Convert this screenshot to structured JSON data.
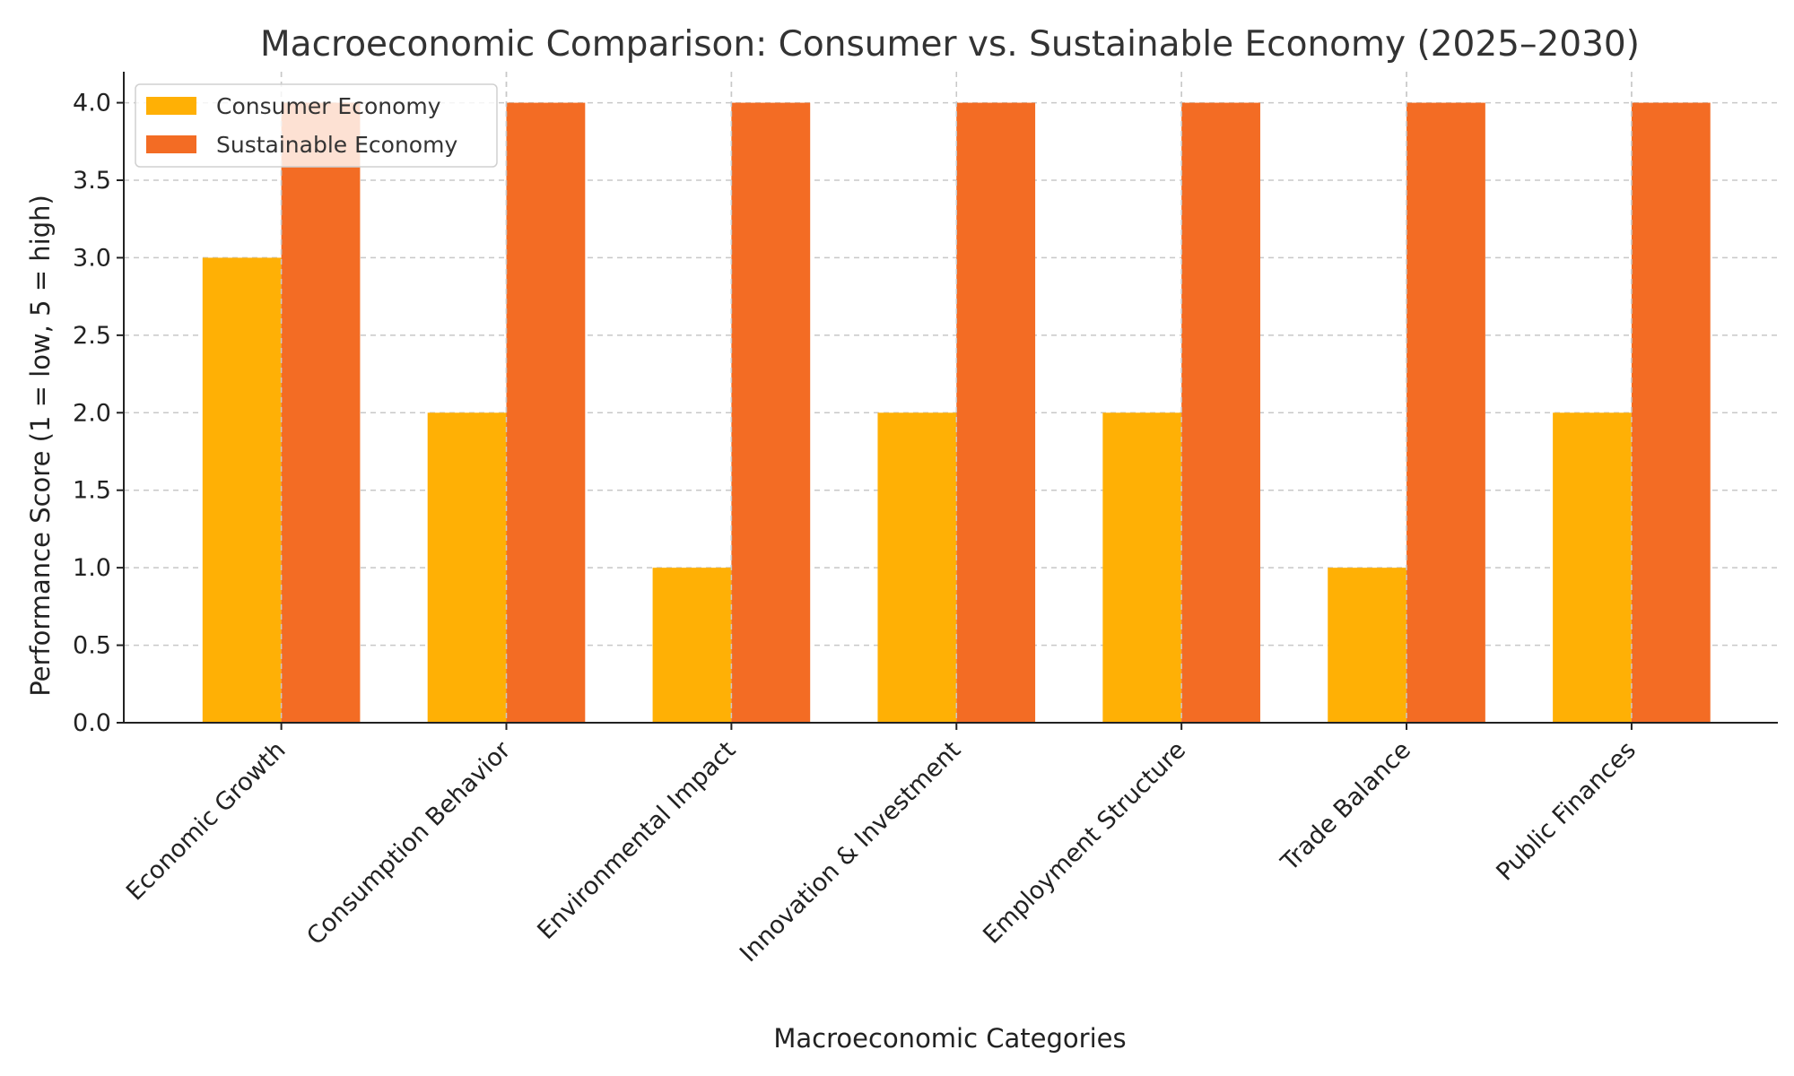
{
  "chart_data": {
    "type": "bar",
    "title": "Macroeconomic Comparison: Consumer vs. Sustainable Economy (2025–2030)",
    "xlabel": "Macroeconomic Categories",
    "ylabel": "Performance Score (1 = low, 5 = high)",
    "ylim": [
      0,
      4.2
    ],
    "yticks": [
      "0.0",
      "0.5",
      "1.0",
      "1.5",
      "2.0",
      "2.5",
      "3.0",
      "3.5",
      "4.0"
    ],
    "grid": true,
    "legend_position": "top-left",
    "categories": [
      "Economic Growth",
      "Consumption Behavior",
      "Environmental Impact",
      "Innovation & Investment",
      "Employment Structure",
      "Trade Balance",
      "Public Finances"
    ],
    "series": [
      {
        "name": "Consumer Economy",
        "color": "#FFB005",
        "values": [
          3,
          2,
          1,
          2,
          2,
          1,
          2
        ]
      },
      {
        "name": "Sustainable Economy",
        "color": "#F36C24",
        "values": [
          4,
          4,
          4,
          4,
          4,
          4,
          4
        ]
      }
    ]
  }
}
